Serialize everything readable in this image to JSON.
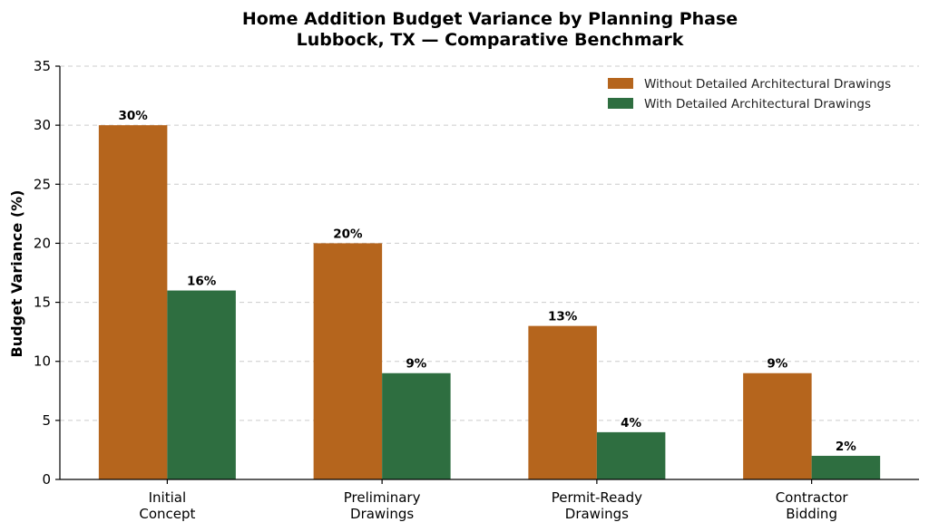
{
  "chart_data": {
    "type": "bar",
    "title": "Home Addition Budget Variance by Planning Phase",
    "subtitle": "Lubbock, TX — Comparative Benchmark",
    "xlabel": "",
    "ylabel": "Budget Variance (%)",
    "ylim": [
      0,
      35
    ],
    "yticks": [
      0,
      5,
      10,
      15,
      20,
      25,
      30,
      35
    ],
    "grid": "horizontal dashed",
    "legend_position": "top-right",
    "categories": [
      [
        "Initial",
        "Concept"
      ],
      [
        "Preliminary",
        "Drawings"
      ],
      [
        "Permit-Ready",
        "Drawings"
      ],
      [
        "Contractor",
        "Bidding"
      ]
    ],
    "series": [
      {
        "name": "Without Detailed Architectural Drawings",
        "color": "#b5651d",
        "values": [
          30,
          20,
          13,
          9
        ],
        "labels": [
          "30%",
          "20%",
          "13%",
          "9%"
        ]
      },
      {
        "name": "With Detailed Architectural Drawings",
        "color": "#2e6e40",
        "values": [
          16,
          9,
          4,
          2
        ],
        "labels": [
          "16%",
          "9%",
          "4%",
          "2%"
        ]
      }
    ]
  }
}
